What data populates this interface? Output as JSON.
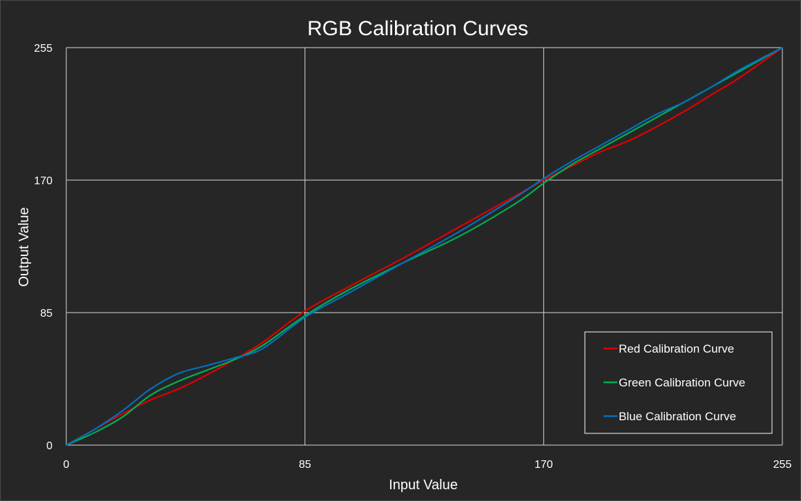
{
  "chart_data": {
    "type": "line",
    "title": "RGB Calibration Curves",
    "xlabel": "Input Value",
    "ylabel": "Output Value",
    "xlim": [
      0,
      255
    ],
    "ylim": [
      0,
      255
    ],
    "xticks": [
      0,
      85,
      170,
      255
    ],
    "yticks": [
      0,
      85,
      170,
      255
    ],
    "grid": true,
    "legend_position": "bottom-right",
    "series": [
      {
        "name": "Red Calibration Curve",
        "color": "#e00000",
        "x": [
          0,
          10,
          20,
          30,
          40,
          50,
          60,
          70,
          85,
          100,
          120,
          140,
          160,
          170,
          180,
          190,
          200,
          210,
          220,
          230,
          240,
          255
        ],
        "y": [
          0,
          10,
          20,
          29,
          36,
          45,
          55,
          66,
          86,
          101,
          120,
          140,
          160,
          170,
          179,
          188,
          195,
          204,
          214,
          225,
          236,
          255
        ]
      },
      {
        "name": "Green Calibration Curve",
        "color": "#00b050",
        "x": [
          0,
          10,
          20,
          30,
          40,
          50,
          60,
          70,
          85,
          100,
          120,
          140,
          160,
          170,
          180,
          190,
          200,
          210,
          220,
          230,
          240,
          255
        ],
        "y": [
          0,
          8,
          18,
          32,
          41,
          48,
          55,
          64,
          83,
          99,
          117,
          134,
          155,
          168,
          180,
          190,
          200,
          210,
          220,
          230,
          240,
          255
        ]
      },
      {
        "name": "Blue Calibration Curve",
        "color": "#0070c0",
        "x": [
          0,
          10,
          20,
          30,
          40,
          50,
          60,
          70,
          85,
          100,
          120,
          140,
          160,
          170,
          180,
          190,
          200,
          210,
          220,
          230,
          240,
          255
        ],
        "y": [
          0,
          10,
          22,
          36,
          46,
          51,
          56,
          62,
          82,
          97,
          117,
          137,
          159,
          171,
          182,
          192,
          202,
          212,
          220,
          230,
          241,
          255
        ]
      }
    ]
  }
}
